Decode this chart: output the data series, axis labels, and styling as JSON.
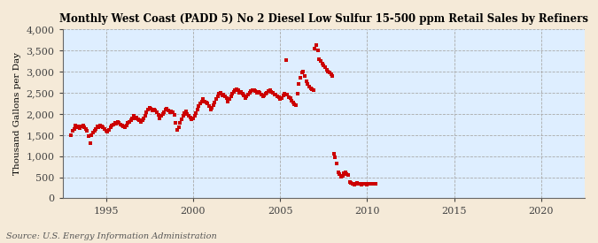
{
  "title": "Monthly West Coast (PADD 5) No 2 Diesel Low Sulfur 15-500 ppm Retail Sales by Refiners",
  "ylabel": "Thousand Gallons per Day",
  "source": "Source: U.S. Energy Information Administration",
  "bg_color": "#f5ead8",
  "plot_bg_color": "#deeeff",
  "marker_color": "#cc0000",
  "xlim": [
    1992.5,
    2022.5
  ],
  "ylim": [
    0,
    4000
  ],
  "yticks": [
    0,
    500,
    1000,
    1500,
    2000,
    2500,
    3000,
    3500,
    4000
  ],
  "xticks": [
    1995,
    2000,
    2005,
    2010,
    2015,
    2020
  ],
  "data": [
    [
      1993.0,
      1490
    ],
    [
      1993.08,
      1600
    ],
    [
      1993.17,
      1650
    ],
    [
      1993.25,
      1720
    ],
    [
      1993.33,
      1680
    ],
    [
      1993.42,
      1700
    ],
    [
      1993.5,
      1660
    ],
    [
      1993.58,
      1700
    ],
    [
      1993.67,
      1730
    ],
    [
      1993.75,
      1680
    ],
    [
      1993.83,
      1650
    ],
    [
      1993.92,
      1600
    ],
    [
      1994.0,
      1480
    ],
    [
      1994.08,
      1310
    ],
    [
      1994.17,
      1500
    ],
    [
      1994.25,
      1560
    ],
    [
      1994.33,
      1610
    ],
    [
      1994.42,
      1650
    ],
    [
      1994.5,
      1700
    ],
    [
      1994.58,
      1680
    ],
    [
      1994.67,
      1720
    ],
    [
      1994.75,
      1700
    ],
    [
      1994.83,
      1680
    ],
    [
      1994.92,
      1650
    ],
    [
      1995.0,
      1600
    ],
    [
      1995.08,
      1580
    ],
    [
      1995.17,
      1620
    ],
    [
      1995.25,
      1680
    ],
    [
      1995.33,
      1720
    ],
    [
      1995.42,
      1750
    ],
    [
      1995.5,
      1780
    ],
    [
      1995.58,
      1760
    ],
    [
      1995.67,
      1800
    ],
    [
      1995.75,
      1780
    ],
    [
      1995.83,
      1750
    ],
    [
      1995.92,
      1720
    ],
    [
      1996.0,
      1700
    ],
    [
      1996.08,
      1680
    ],
    [
      1996.17,
      1730
    ],
    [
      1996.25,
      1780
    ],
    [
      1996.33,
      1820
    ],
    [
      1996.42,
      1860
    ],
    [
      1996.5,
      1900
    ],
    [
      1996.58,
      1950
    ],
    [
      1996.67,
      1900
    ],
    [
      1996.75,
      1920
    ],
    [
      1996.83,
      1880
    ],
    [
      1996.92,
      1850
    ],
    [
      1997.0,
      1820
    ],
    [
      1997.08,
      1850
    ],
    [
      1997.17,
      1900
    ],
    [
      1997.25,
      1960
    ],
    [
      1997.33,
      2050
    ],
    [
      1997.42,
      2100
    ],
    [
      1997.5,
      2150
    ],
    [
      1997.58,
      2120
    ],
    [
      1997.67,
      2080
    ],
    [
      1997.75,
      2100
    ],
    [
      1997.83,
      2080
    ],
    [
      1997.92,
      2050
    ],
    [
      1998.0,
      1980
    ],
    [
      1998.08,
      1900
    ],
    [
      1998.17,
      1950
    ],
    [
      1998.25,
      2000
    ],
    [
      1998.33,
      2050
    ],
    [
      1998.42,
      2100
    ],
    [
      1998.5,
      2120
    ],
    [
      1998.58,
      2080
    ],
    [
      1998.67,
      2050
    ],
    [
      1998.75,
      2070
    ],
    [
      1998.83,
      2040
    ],
    [
      1998.92,
      1980
    ],
    [
      1999.0,
      1780
    ],
    [
      1999.08,
      1620
    ],
    [
      1999.17,
      1680
    ],
    [
      1999.25,
      1780
    ],
    [
      1999.33,
      1870
    ],
    [
      1999.42,
      1950
    ],
    [
      1999.5,
      2020
    ],
    [
      1999.58,
      2060
    ],
    [
      1999.67,
      1990
    ],
    [
      1999.75,
      1960
    ],
    [
      1999.83,
      1920
    ],
    [
      1999.92,
      1880
    ],
    [
      2000.0,
      1900
    ],
    [
      2000.08,
      1960
    ],
    [
      2000.17,
      2020
    ],
    [
      2000.25,
      2100
    ],
    [
      2000.33,
      2180
    ],
    [
      2000.42,
      2250
    ],
    [
      2000.5,
      2300
    ],
    [
      2000.58,
      2350
    ],
    [
      2000.67,
      2300
    ],
    [
      2000.75,
      2280
    ],
    [
      2000.83,
      2240
    ],
    [
      2000.92,
      2180
    ],
    [
      2001.0,
      2100
    ],
    [
      2001.08,
      2150
    ],
    [
      2001.17,
      2200
    ],
    [
      2001.25,
      2280
    ],
    [
      2001.33,
      2350
    ],
    [
      2001.42,
      2420
    ],
    [
      2001.5,
      2480
    ],
    [
      2001.58,
      2500
    ],
    [
      2001.67,
      2440
    ],
    [
      2001.75,
      2460
    ],
    [
      2001.83,
      2420
    ],
    [
      2001.92,
      2370
    ],
    [
      2002.0,
      2300
    ],
    [
      2002.08,
      2350
    ],
    [
      2002.17,
      2420
    ],
    [
      2002.25,
      2470
    ],
    [
      2002.33,
      2520
    ],
    [
      2002.42,
      2560
    ],
    [
      2002.5,
      2580
    ],
    [
      2002.58,
      2560
    ],
    [
      2002.67,
      2500
    ],
    [
      2002.75,
      2520
    ],
    [
      2002.83,
      2480
    ],
    [
      2002.92,
      2440
    ],
    [
      2003.0,
      2380
    ],
    [
      2003.08,
      2420
    ],
    [
      2003.17,
      2460
    ],
    [
      2003.25,
      2510
    ],
    [
      2003.33,
      2540
    ],
    [
      2003.42,
      2560
    ],
    [
      2003.5,
      2570
    ],
    [
      2003.58,
      2550
    ],
    [
      2003.67,
      2510
    ],
    [
      2003.75,
      2530
    ],
    [
      2003.83,
      2490
    ],
    [
      2003.92,
      2450
    ],
    [
      2004.0,
      2410
    ],
    [
      2004.08,
      2440
    ],
    [
      2004.17,
      2470
    ],
    [
      2004.25,
      2510
    ],
    [
      2004.33,
      2540
    ],
    [
      2004.42,
      2560
    ],
    [
      2004.5,
      2530
    ],
    [
      2004.58,
      2500
    ],
    [
      2004.67,
      2450
    ],
    [
      2004.75,
      2460
    ],
    [
      2004.83,
      2420
    ],
    [
      2004.92,
      2390
    ],
    [
      2005.0,
      2350
    ],
    [
      2005.08,
      2380
    ],
    [
      2005.17,
      2430
    ],
    [
      2005.25,
      2480
    ],
    [
      2005.33,
      3270
    ],
    [
      2005.42,
      2450
    ],
    [
      2005.5,
      2400
    ],
    [
      2005.58,
      2380
    ],
    [
      2005.67,
      2320
    ],
    [
      2005.75,
      2260
    ],
    [
      2005.83,
      2230
    ],
    [
      2005.92,
      2200
    ],
    [
      2006.0,
      2480
    ],
    [
      2006.08,
      2700
    ],
    [
      2006.17,
      2850
    ],
    [
      2006.25,
      2980
    ],
    [
      2006.33,
      3000
    ],
    [
      2006.42,
      2900
    ],
    [
      2006.5,
      2780
    ],
    [
      2006.58,
      2700
    ],
    [
      2006.67,
      2650
    ],
    [
      2006.75,
      2600
    ],
    [
      2006.83,
      2580
    ],
    [
      2006.92,
      2560
    ],
    [
      2007.0,
      3550
    ],
    [
      2007.08,
      3630
    ],
    [
      2007.17,
      3500
    ],
    [
      2007.25,
      3300
    ],
    [
      2007.33,
      3250
    ],
    [
      2007.42,
      3200
    ],
    [
      2007.5,
      3150
    ],
    [
      2007.58,
      3100
    ],
    [
      2007.67,
      3050
    ],
    [
      2007.75,
      3000
    ],
    [
      2007.83,
      2980
    ],
    [
      2007.92,
      2950
    ],
    [
      2008.0,
      2900
    ],
    [
      2008.08,
      1050
    ],
    [
      2008.17,
      970
    ],
    [
      2008.25,
      820
    ],
    [
      2008.33,
      610
    ],
    [
      2008.42,
      580
    ],
    [
      2008.5,
      510
    ],
    [
      2008.58,
      540
    ],
    [
      2008.67,
      590
    ],
    [
      2008.75,
      620
    ],
    [
      2008.83,
      580
    ],
    [
      2008.92,
      550
    ],
    [
      2009.0,
      380
    ],
    [
      2009.08,
      360
    ],
    [
      2009.17,
      340
    ],
    [
      2009.25,
      330
    ],
    [
      2009.33,
      350
    ],
    [
      2009.42,
      360
    ],
    [
      2009.5,
      350
    ],
    [
      2009.58,
      340
    ],
    [
      2009.67,
      330
    ],
    [
      2009.75,
      340
    ],
    [
      2009.83,
      350
    ],
    [
      2009.92,
      340
    ],
    [
      2010.0,
      330
    ],
    [
      2010.08,
      340
    ],
    [
      2010.17,
      350
    ],
    [
      2010.25,
      355
    ],
    [
      2010.33,
      350
    ],
    [
      2010.42,
      345
    ],
    [
      2010.5,
      340
    ]
  ]
}
